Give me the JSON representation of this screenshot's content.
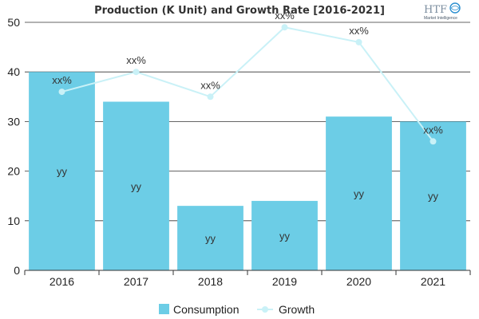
{
  "chart_data": {
    "type": "bar",
    "title": "Production (K Unit) and Growth Rate [2016-2021]",
    "categories": [
      "2016",
      "2017",
      "2018",
      "2019",
      "2020",
      "2021"
    ],
    "ylim": [
      0,
      50
    ],
    "yticks": [
      "0",
      "10",
      "20",
      "30",
      "40",
      "50"
    ],
    "grid": true,
    "legend_position": "bottom-center",
    "series": [
      {
        "name": "Consumption",
        "kind": "bar",
        "color": "#6ccde6",
        "values": [
          40,
          34,
          13,
          14,
          31,
          30
        ],
        "labels": [
          "yy",
          "yy",
          "yy",
          "yy",
          "yy",
          "yy"
        ]
      },
      {
        "name": "Growth",
        "kind": "line",
        "color": "#c9f1f7",
        "values": [
          36,
          40,
          35,
          49,
          46,
          26
        ],
        "labels": [
          "xx%",
          "xx%",
          "xx%",
          "xx%",
          "xx%",
          "xx%"
        ]
      }
    ]
  },
  "logo": {
    "text": "HTF",
    "subtext": "Market Intelligence",
    "colors": [
      "#7a8c9e",
      "#2a8fd0"
    ]
  }
}
